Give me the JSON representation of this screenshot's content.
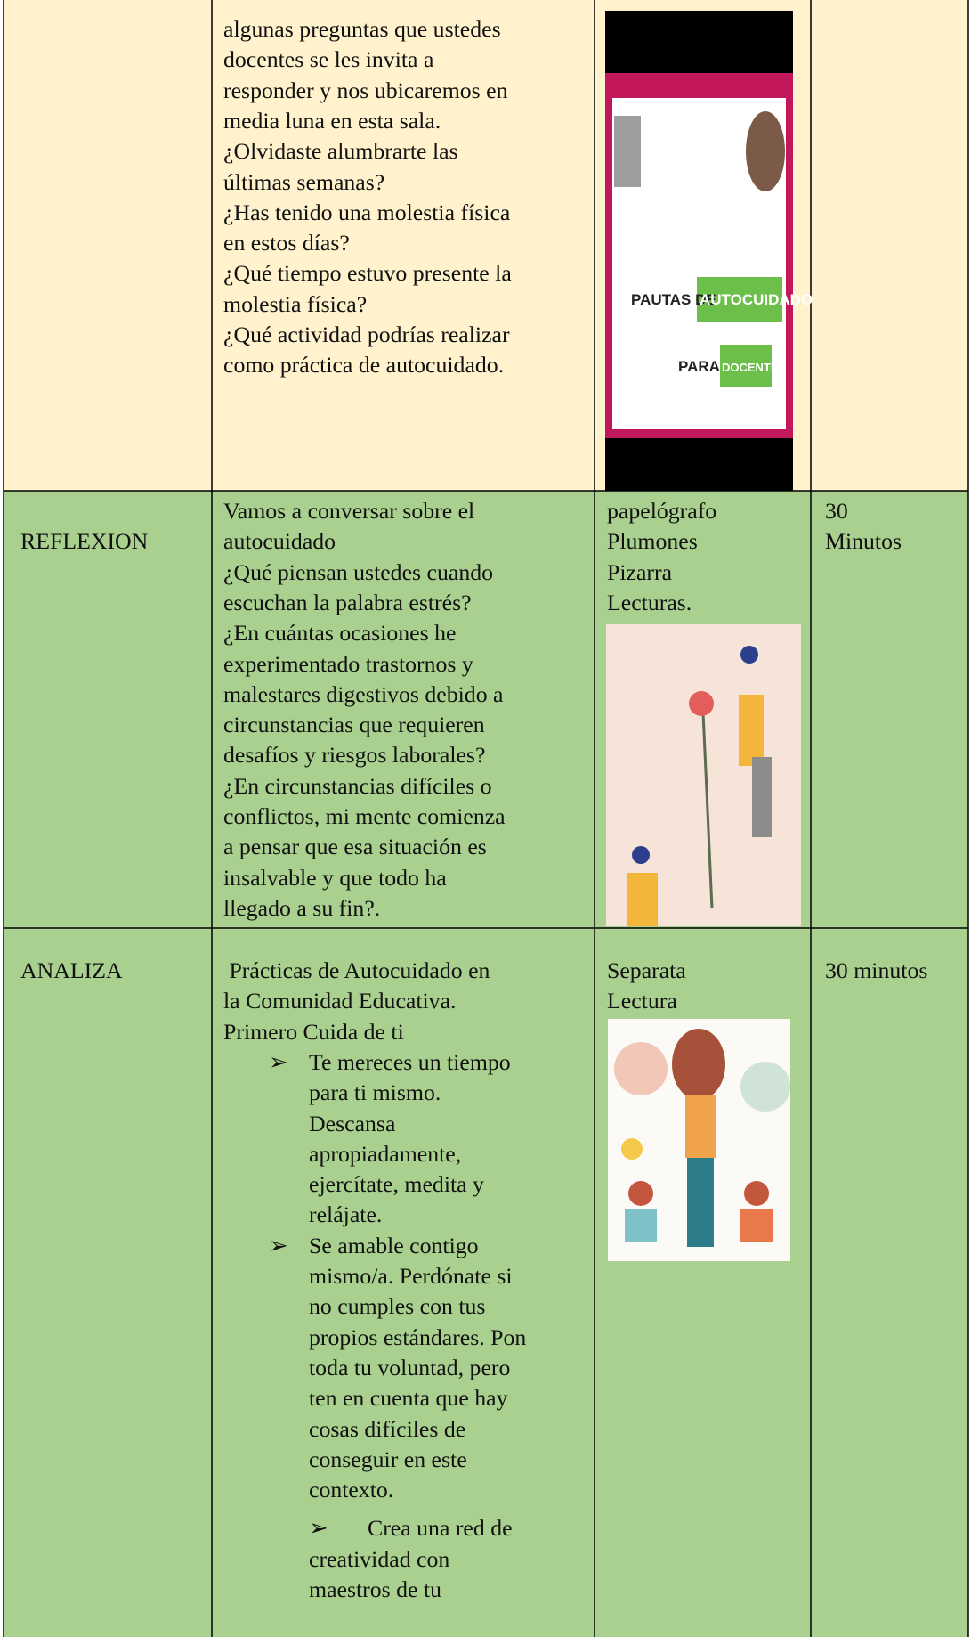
{
  "table": {
    "rows": [
      {
        "activity": [
          "algunas preguntas que ustedes",
          "docentes se les invita a",
          "responder y nos ubicaremos en",
          "media luna en esta sala.",
          "¿Olvidaste alumbrarte las",
          "últimas semanas?",
          "¿Has tenido una molestia física",
          "en estos días?",
          "¿Qué tiempo estuvo presente la",
          "molestia física?",
          "¿Qué actividad podrías realizar",
          "como práctica de autocuidado."
        ],
        "image_text": [
          "PAUTAS DE",
          "AUTOCUIDADO",
          "PARA",
          "DOCENTES"
        ]
      },
      {
        "stage": "REFLEXION",
        "activity": [
          "Vamos a conversar sobre el",
          "autocuidado",
          "¿Qué piensan ustedes cuando",
          "escuchan la palabra estrés?",
          "¿En cuántas ocasiones he",
          "experimentado trastornos y",
          "malestares digestivos debido a",
          "circunstancias que requieren",
          "desafíos y riesgos laborales?",
          "¿En circunstancias difíciles o",
          "conflictos, mi mente comienza",
          "a pensar que esa situación es",
          "insalvable y que todo ha",
          "llegado a su fin?."
        ],
        "materials": [
          "papelógrafo",
          "Plumones",
          "Pizarra",
          "Lecturas."
        ],
        "time": [
          "30",
          "Minutos"
        ]
      },
      {
        "stage": "ANALIZA",
        "activity": [
          " Prácticas de Autocuidado en",
          "la Comunidad Educativa.",
          "Primero Cuida de ti"
        ],
        "bullet": "➢",
        "bullets": [
          [
            "Te mereces un tiempo",
            "para ti mismo.",
            "Descansa",
            "apropiadamente,",
            "ejercítate, medita y",
            "relájate."
          ],
          [
            "Se amable contigo",
            "mismo/a. Perdónate si",
            "no cumples con tus",
            "propios estándares. Pon",
            "toda tu voluntad, pero",
            "ten en cuenta que hay",
            "cosas difíciles de",
            "conseguir en este",
            "contexto."
          ],
          [
            "Crea una red de",
            "creatividad con",
            "maestros de tu"
          ]
        ],
        "materials": [
          "Separata",
          "Lectura"
        ],
        "time": [
          "30 minutos"
        ]
      }
    ]
  }
}
